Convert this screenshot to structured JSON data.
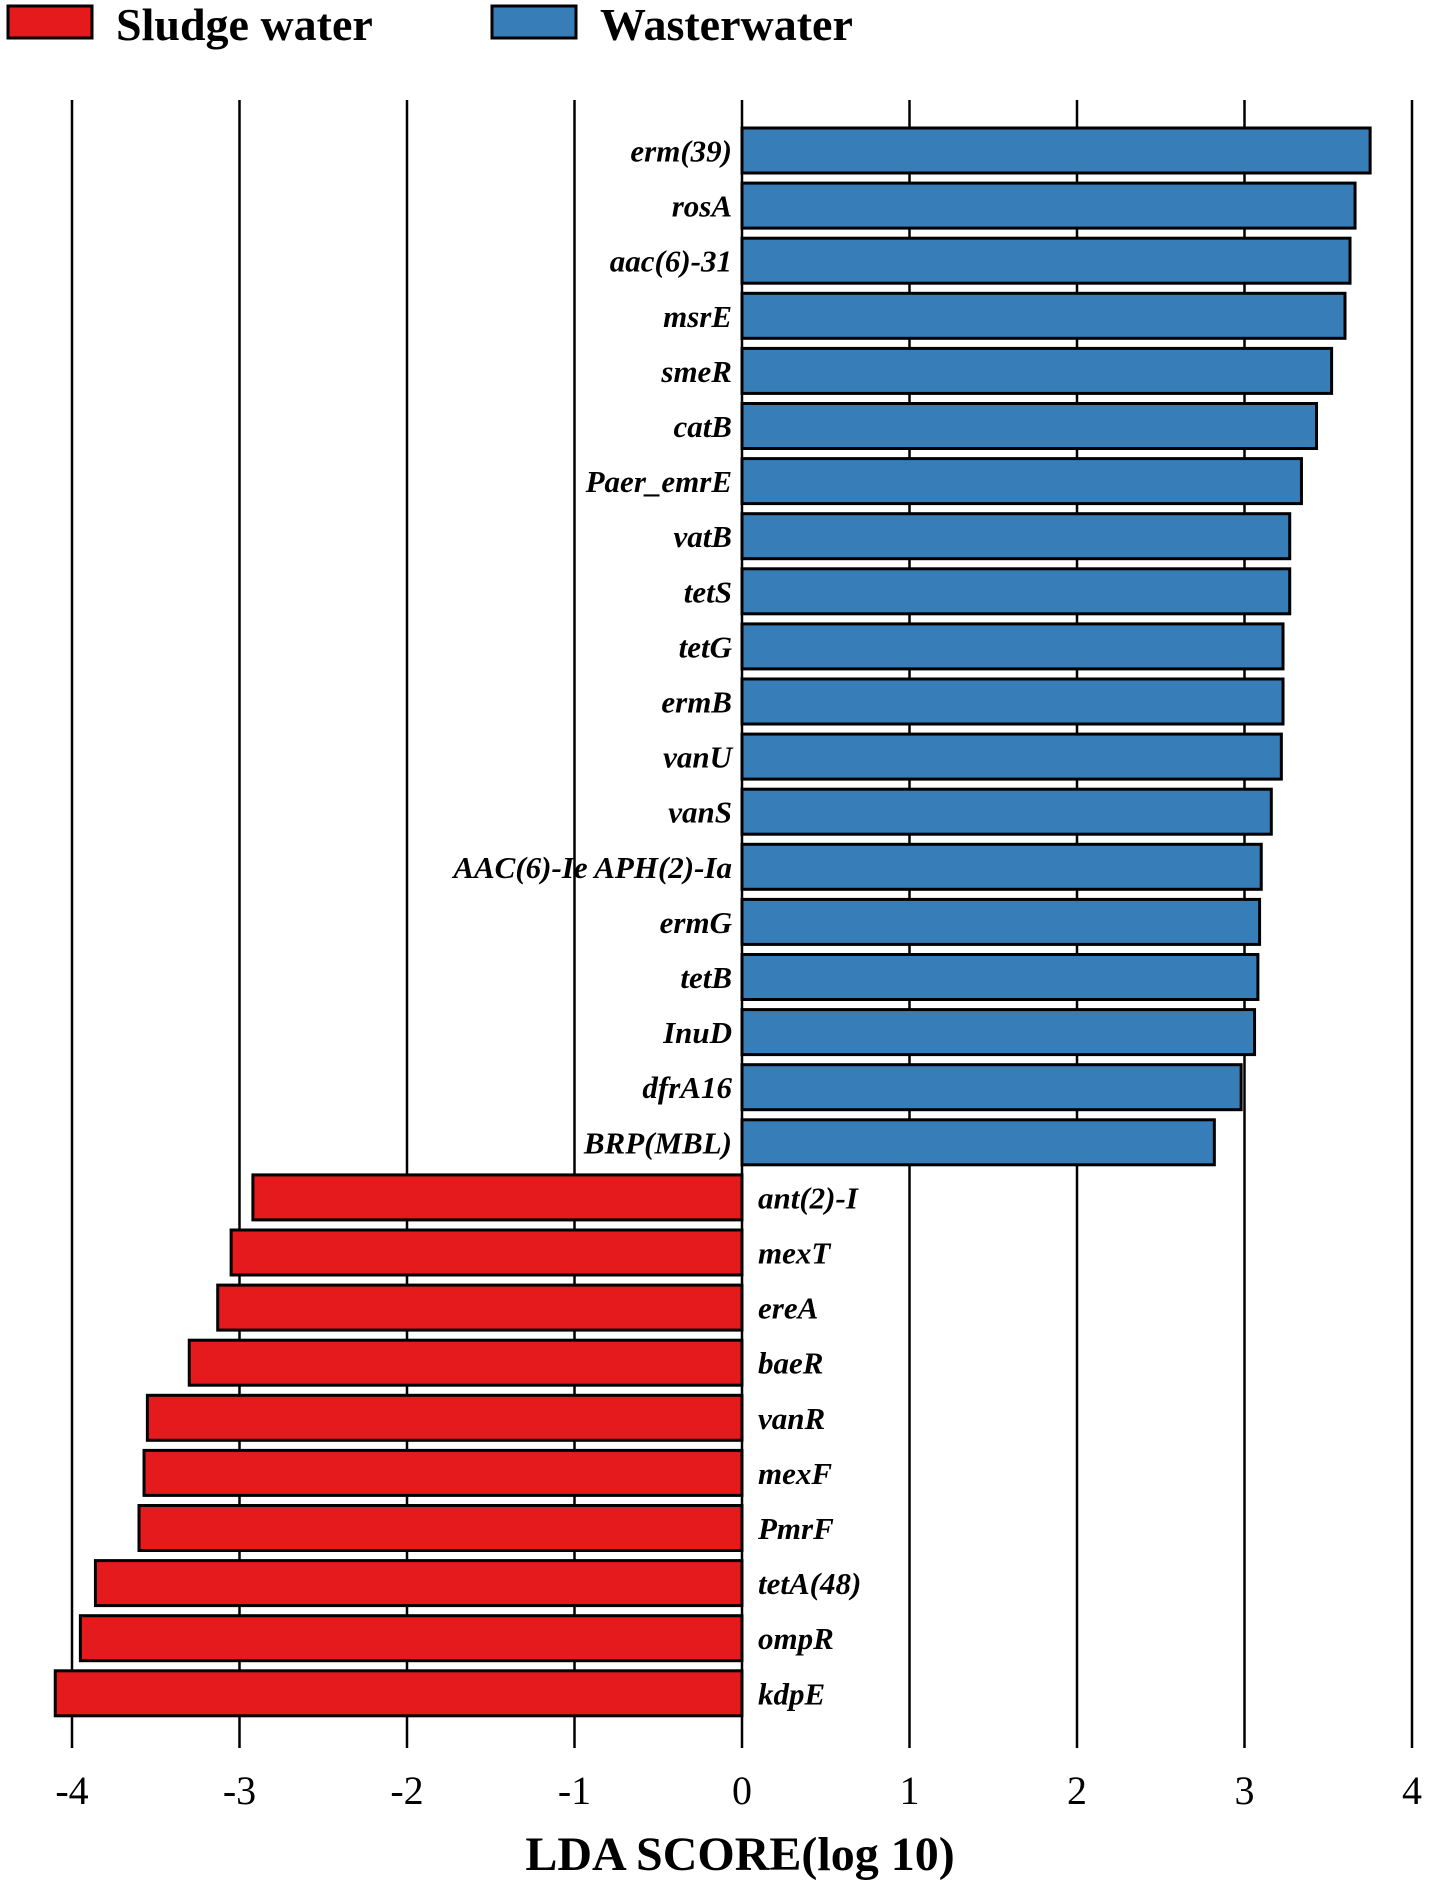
{
  "chart_data": {
    "type": "bar",
    "orientation": "horizontal",
    "xlabel": "LDA SCORE(log 10)",
    "xlim": [
      -4.1,
      4.0
    ],
    "xticks": [
      "-4",
      "-3",
      "-2",
      "-1",
      "0",
      "1",
      "2",
      "3",
      "4"
    ],
    "grid": true,
    "legend_position": "top-left",
    "legend": [
      {
        "name": "Sludge water",
        "color": "#e41a1c"
      },
      {
        "name": "Wasterwater",
        "color": "#377eb8"
      }
    ],
    "categories": [
      "erm(39)",
      "rosA",
      "aac(6)-31",
      "msrE",
      "smeR",
      "catB",
      "Paer_emrE",
      "vatB",
      "tetS",
      "tetG",
      "ermB",
      "vanU",
      "vanS",
      "AAC(6)-Ie APH(2)-Ia",
      "ermG",
      "tetB",
      "InuD",
      "dfrA16",
      "BRP(MBL)",
      "ant(2)-I",
      "mexT",
      "ereA",
      "baeR",
      "vanR",
      "mexF",
      "PmrF",
      "tetA(48)",
      "ompR",
      "kdpE"
    ],
    "series": [
      {
        "name": "Wasterwater",
        "color": "#377eb8",
        "values": [
          3.75,
          3.66,
          3.63,
          3.6,
          3.52,
          3.43,
          3.34,
          3.27,
          3.27,
          3.23,
          3.23,
          3.22,
          3.16,
          3.1,
          3.09,
          3.08,
          3.06,
          2.98,
          2.82,
          null,
          null,
          null,
          null,
          null,
          null,
          null,
          null,
          null,
          null
        ]
      },
      {
        "name": "Sludge water",
        "color": "#e41a1c",
        "values": [
          null,
          null,
          null,
          null,
          null,
          null,
          null,
          null,
          null,
          null,
          null,
          null,
          null,
          null,
          null,
          null,
          null,
          null,
          null,
          -2.92,
          -3.05,
          -3.13,
          -3.3,
          -3.55,
          -3.57,
          -3.6,
          -3.86,
          -3.95,
          -4.1
        ]
      }
    ]
  }
}
